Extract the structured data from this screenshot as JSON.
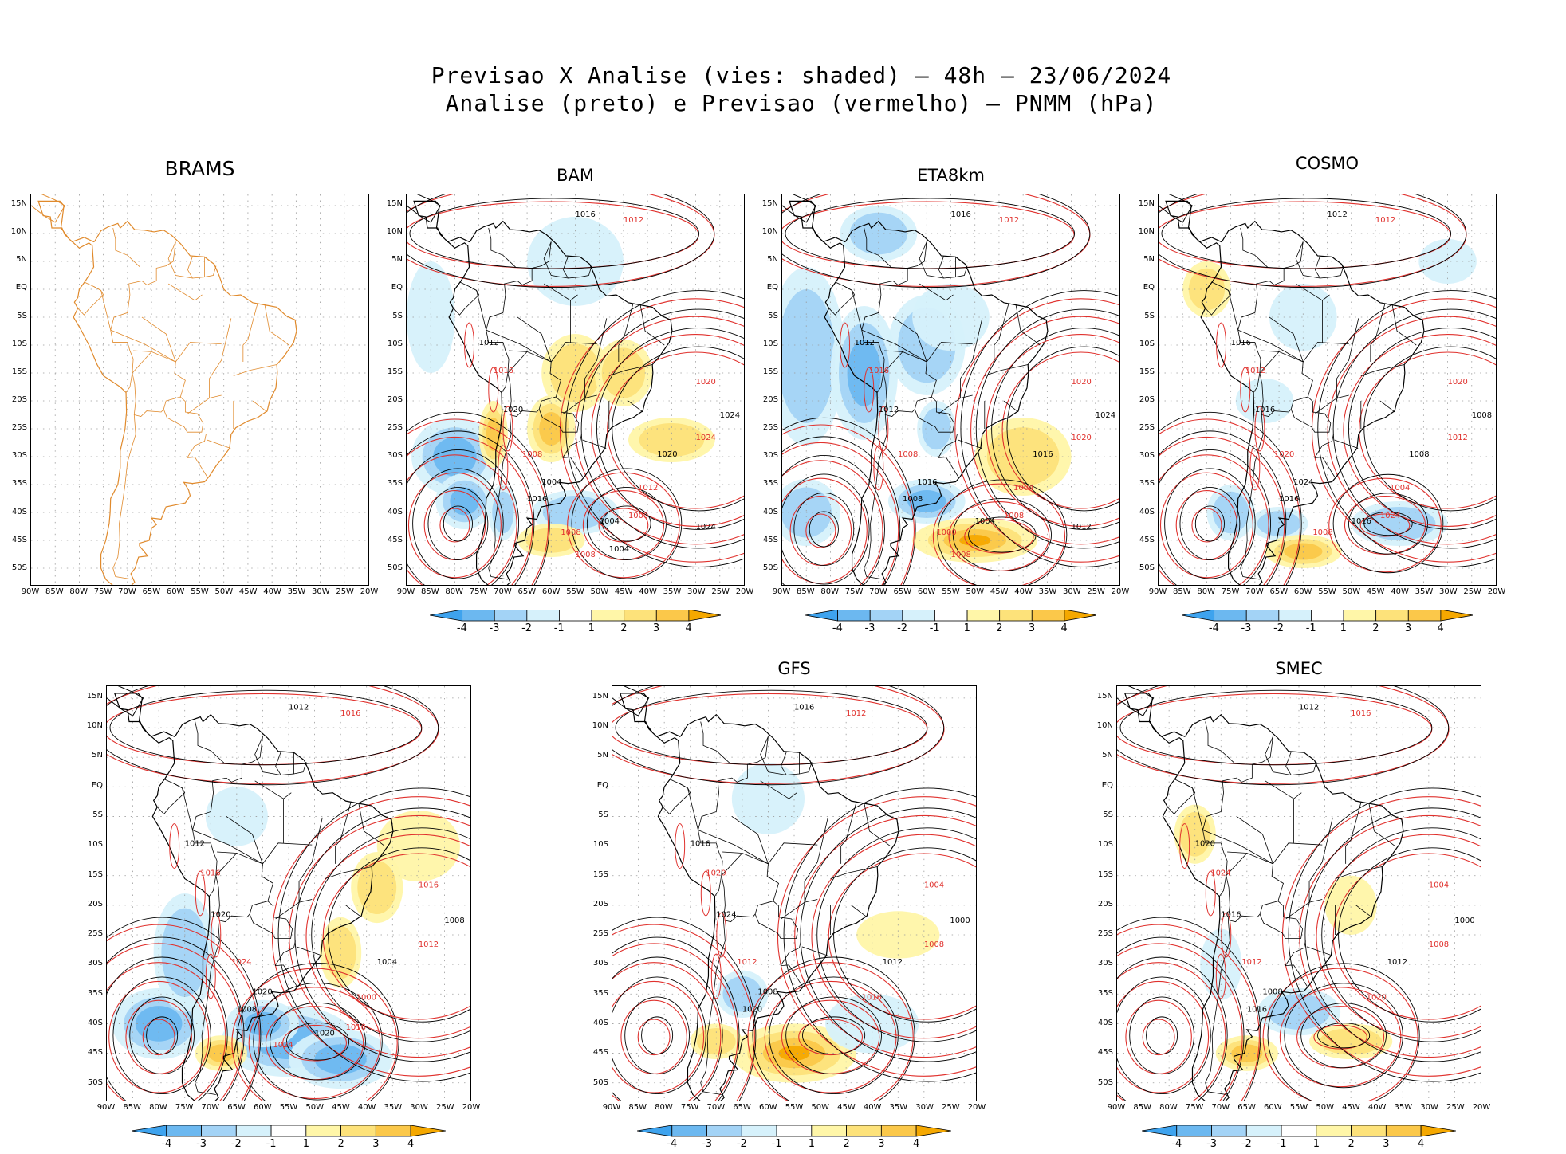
{
  "header": {
    "line1": "Previsao X Analise (vies: shaded) – 48h – 23/06/2024",
    "line2": "Analise (preto) e Previsao (vermelho) – PNMM (hPa)"
  },
  "panels": [
    {
      "id": "brams",
      "title": "BRAMS"
    },
    {
      "id": "bam",
      "title": "BAM"
    },
    {
      "id": "eta",
      "title": "ETA8km"
    },
    {
      "id": "cosmo",
      "title": "COSMO"
    },
    {
      "id": "p5",
      "title": ""
    },
    {
      "id": "gfs",
      "title": "GFS"
    },
    {
      "id": "smec",
      "title": "SMEC"
    }
  ],
  "axes": {
    "lat_labels": [
      "15N",
      "10N",
      "5N",
      "EQ",
      "5S",
      "10S",
      "15S",
      "20S",
      "25S",
      "30S",
      "35S",
      "40S",
      "45S",
      "50S"
    ],
    "lon_labels": [
      "90W",
      "85W",
      "80W",
      "75W",
      "70W",
      "65W",
      "60W",
      "55W",
      "50W",
      "45W",
      "40W",
      "35W",
      "30W",
      "25W",
      "20W"
    ]
  },
  "colorbar": {
    "labels": [
      "-4",
      "-3",
      "-2",
      "-1",
      "1",
      "2",
      "3",
      "4"
    ],
    "colors": [
      "#3ea3ee",
      "#6cb8f0",
      "#a3d3f6",
      "#d6f1fb",
      "#ffffff",
      "#fff6a8",
      "#fde27a",
      "#fbc84a",
      "#f5a800"
    ]
  },
  "colors": {
    "analysis": "#000000",
    "forecast": "#e0312d",
    "coast_brams": "#e08a2c",
    "negative_bias": "#6cb8f0",
    "positive_bias": "#fbc84a"
  },
  "contour_labels": {
    "brams": [],
    "bam": [
      "1016",
      "1012",
      "1012",
      "1016",
      "1020",
      "1008",
      "1004",
      "1020",
      "1024",
      "1024",
      "1020",
      "1012",
      "1016",
      "1008",
      "1004",
      "1000",
      "1024",
      "1008",
      "1004"
    ],
    "eta": [
      "1016",
      "1012",
      "1012",
      "1016",
      "1012",
      "1008",
      "1016",
      "1020",
      "1024",
      "1020",
      "1016",
      "1004",
      "1008",
      "1000",
      "1004",
      "1008",
      "1012",
      "1008"
    ],
    "cosmo": [
      "1012",
      "1012",
      "1016",
      "1012",
      "1016",
      "1020",
      "1024",
      "1020",
      "1008",
      "1012",
      "1008",
      "1004",
      "1016",
      "1008",
      "1016",
      "1024"
    ],
    "p5": [
      "1012",
      "1016",
      "1012",
      "1016",
      "1020",
      "1024",
      "1020",
      "1016",
      "1008",
      "1012",
      "1004",
      "1000",
      "1008",
      "1024",
      "1020",
      "1016"
    ],
    "gfs": [
      "1016",
      "1012",
      "1016",
      "1020",
      "1024",
      "1012",
      "1008",
      "1004",
      "1000",
      "1008",
      "1012",
      "1016",
      "1020"
    ],
    "smec": [
      "1012",
      "1016",
      "1020",
      "1024",
      "1016",
      "1012",
      "1008",
      "1004",
      "1000",
      "1008",
      "1012",
      "1020",
      "1016"
    ]
  }
}
